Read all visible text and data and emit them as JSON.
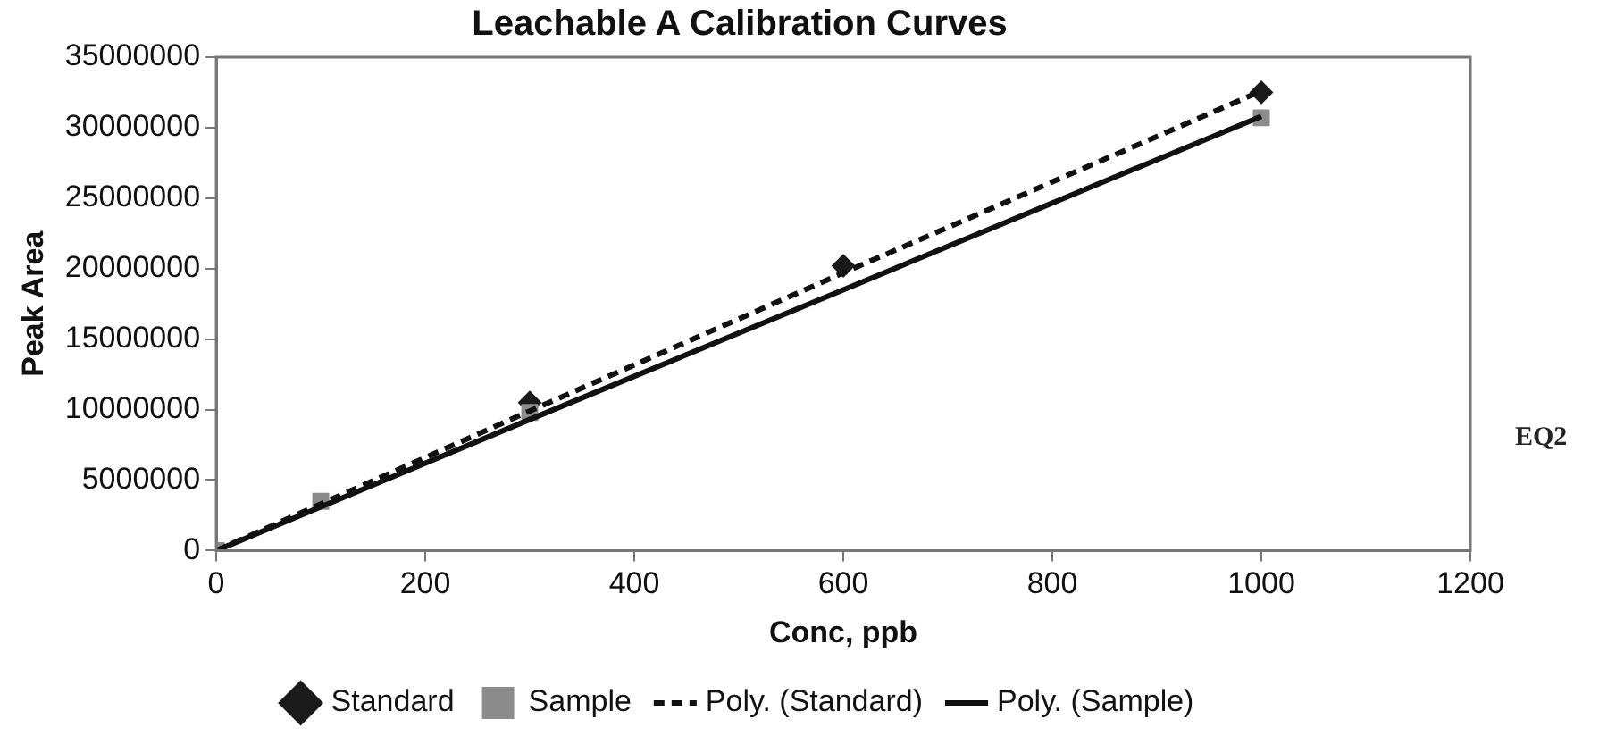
{
  "chart_data": {
    "type": "scatter",
    "title": "Leachable A Calibration Curves",
    "xlabel": "Conc, ppb",
    "ylabel": "Peak Area",
    "x": [
      0,
      100,
      300,
      600,
      1000
    ],
    "series": [
      {
        "name": "Standard",
        "type": "scatter",
        "marker": "diamond",
        "color": "#1a1a1a",
        "values": [
          null,
          null,
          10500000,
          20200000,
          32500000
        ]
      },
      {
        "name": "Sample",
        "type": "scatter",
        "marker": "square",
        "color": "#8c8c8c",
        "values": [
          0,
          3500000,
          9800000,
          null,
          30700000
        ]
      },
      {
        "name": "Poly. (Standard)",
        "type": "line",
        "marker": "none",
        "line_style": "dashed",
        "color": "#111111",
        "values": [
          0,
          3300000,
          9900000,
          19700000,
          32600000
        ]
      },
      {
        "name": "Poly. (Sample)",
        "type": "line",
        "marker": "none",
        "line_style": "solid",
        "color": "#111111",
        "values": [
          0,
          3100000,
          9300000,
          18500000,
          30800000
        ]
      }
    ],
    "xlim": [
      0,
      1200
    ],
    "xticks": [
      0,
      200,
      400,
      600,
      800,
      1000,
      1200
    ],
    "ylim": [
      0,
      35000000
    ],
    "yticks": [
      0,
      5000000,
      10000000,
      15000000,
      20000000,
      25000000,
      30000000,
      35000000
    ],
    "grid": false,
    "legend": "bottom",
    "annotations": [
      "EQ2"
    ]
  }
}
